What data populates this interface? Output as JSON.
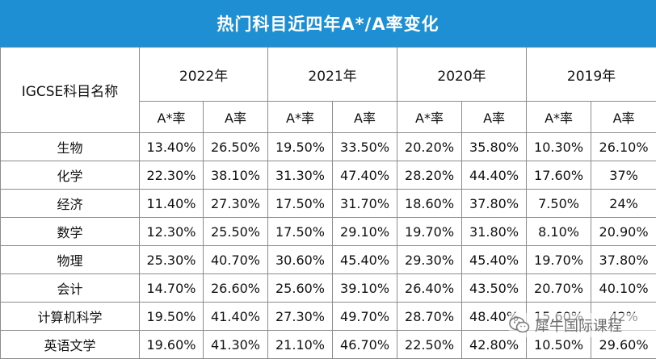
{
  "title": "热门科目近四年A*/A率变化",
  "header": {
    "subject_label": "IGCSE科目名称",
    "years": [
      "2022年",
      "2021年",
      "2020年",
      "2019年"
    ],
    "astar_label": "A*率",
    "a_label": "A率"
  },
  "rows": [
    {
      "subject": "生物",
      "values": [
        "13.40%",
        "26.50%",
        "19.50%",
        "33.50%",
        "20.20%",
        "35.80%",
        "10.30%",
        "26.10%"
      ]
    },
    {
      "subject": "化学",
      "values": [
        "22.30%",
        "38.10%",
        "31.30%",
        "47.40%",
        "28.20%",
        "44.40%",
        "17.60%",
        "37%"
      ]
    },
    {
      "subject": "经济",
      "values": [
        "11.40%",
        "27.30%",
        "17.50%",
        "31.70%",
        "18.60%",
        "37.80%",
        "7.50%",
        "24%"
      ]
    },
    {
      "subject": "数学",
      "values": [
        "12.30%",
        "25.50%",
        "17.50%",
        "29.10%",
        "19.70%",
        "31.80%",
        "8.10%",
        "20.90%"
      ]
    },
    {
      "subject": "物理",
      "values": [
        "25.30%",
        "40.70%",
        "30.60%",
        "45.40%",
        "29.30%",
        "45.40%",
        "19.70%",
        "37.80%"
      ]
    },
    {
      "subject": "会计",
      "values": [
        "14.70%",
        "26.60%",
        "25.60%",
        "39.10%",
        "26.40%",
        "43.50%",
        "20.70%",
        "40.10%"
      ]
    },
    {
      "subject": "计算机科学",
      "values": [
        "19.50%",
        "41.40%",
        "27.30%",
        "49.70%",
        "28.70%",
        "48.40%",
        "15.60%",
        "42%"
      ]
    },
    {
      "subject": "英语文学",
      "values": [
        "19.60%",
        "41.30%",
        "21.10%",
        "46.70%",
        "22.50%",
        "42.80%",
        "10.50%",
        "29.60%"
      ]
    }
  ],
  "watermark": {
    "text": "犀牛国际课程",
    "icon": "wechat-icon"
  },
  "colors": {
    "title_bg": "#1f8fd3",
    "title_text": "#ffffff",
    "border": "#8c8c8c"
  }
}
